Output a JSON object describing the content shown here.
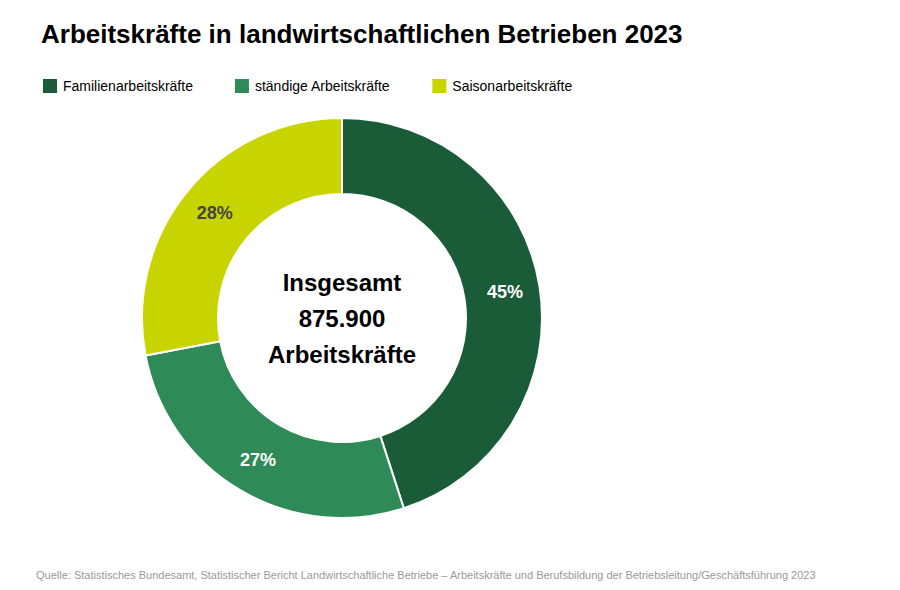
{
  "chart_data": {
    "type": "pie",
    "title": "Arbeitskräfte in landwirtschaftlichen Betrieben 2023",
    "categories": [
      "Familienarbeitskräfte",
      "ständige Arbeitskräfte",
      "Saisonarbeitskräfte"
    ],
    "values": [
      45,
      27,
      28
    ],
    "value_labels": [
      "45%",
      "27%",
      "28%"
    ],
    "colors": [
      "#1a5c38",
      "#2e8b57",
      "#c8d400"
    ],
    "data_labels": true,
    "legend": "upper left",
    "annotations": [
      "Insgesamt",
      "875.900",
      "Arbeitskräfte"
    ],
    "source": "Quelle: Statistisches Bundesamt, Statistischer Bericht Landwirtschaftliche Betriebe – Arbeitskräfte und Berufsbildung der Betriebsleitung/Geschäftsführung 2023"
  }
}
